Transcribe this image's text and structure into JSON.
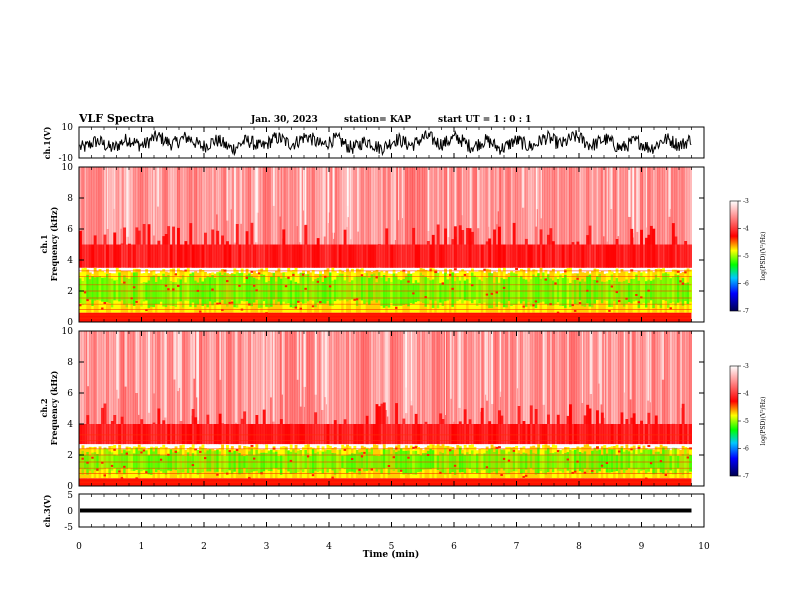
{
  "header": {
    "title": "VLF Spectra",
    "date": "Jan. 30, 2023",
    "station": "station= KAP",
    "start": "start UT =  1 : 0  : 1"
  },
  "chart_data": [
    {
      "type": "line",
      "panel": "ch1-waveform",
      "ylabel": "ch.1(V)",
      "ylim": [
        -10,
        10
      ],
      "yticks": [
        "10",
        "-10"
      ],
      "xlim": [
        0,
        10
      ],
      "data_xmax": 9.8,
      "amplitude": [
        -8,
        9
      ],
      "color": "#000000"
    },
    {
      "type": "heatmap",
      "panel": "ch1-spectrogram",
      "ylabel": "ch.1\nFrequency (kHz)",
      "ylabel_lines": [
        "ch.1",
        "Frequency (kHz)"
      ],
      "ylim": [
        0,
        10
      ],
      "yticks": [
        "0",
        "2",
        "4",
        "6",
        "8",
        "10"
      ],
      "xlim": [
        0,
        10
      ],
      "data_xmax": 9.8,
      "bands": [
        {
          "from": 0,
          "to": 0.6,
          "level": "red"
        },
        {
          "from": 0.6,
          "to": 3.5,
          "level": "yellow-green"
        },
        {
          "from": 3.5,
          "to": 5.0,
          "level": "red"
        },
        {
          "from": 5.0,
          "to": 10,
          "level": "light-red"
        }
      ],
      "colorbar": {
        "label": "log(PSD)(V²/Hz)",
        "range": [
          -7,
          -3
        ],
        "ticks": [
          "-3",
          "-4",
          "-5",
          "-6",
          "-7"
        ]
      }
    },
    {
      "type": "heatmap",
      "panel": "ch2-spectrogram",
      "ylabel": "ch.2\nFrequency (kHz)",
      "ylabel_lines": [
        "ch.2",
        "Frequency (kHz)"
      ],
      "ylim": [
        0,
        10
      ],
      "yticks": [
        "0",
        "2",
        "4",
        "6",
        "8",
        "10"
      ],
      "xlim": [
        0,
        10
      ],
      "data_xmax": 9.8,
      "bands": [
        {
          "from": 0,
          "to": 0.5,
          "level": "red"
        },
        {
          "from": 0.5,
          "to": 2.7,
          "level": "yellow-green"
        },
        {
          "from": 2.7,
          "to": 4.0,
          "level": "red"
        },
        {
          "from": 4.0,
          "to": 10,
          "level": "light-red"
        }
      ],
      "colorbar": {
        "label": "log(PSD)(V²/Hz)",
        "range": [
          -7,
          -3
        ],
        "ticks": [
          "-3",
          "-4",
          "-5",
          "-6",
          "-7"
        ]
      }
    },
    {
      "type": "line",
      "panel": "ch3-waveform",
      "ylabel": "ch.3(V)",
      "ylim": [
        -5,
        5
      ],
      "yticks": [
        "5",
        "0",
        "-5"
      ],
      "xlim": [
        0,
        10
      ],
      "data_xmax": 9.8,
      "center": 0,
      "amplitude": [
        -0.6,
        0.6
      ],
      "color": "#000000"
    }
  ],
  "xaxis": {
    "label": "Time (min)",
    "ticks": [
      "0",
      "1",
      "2",
      "3",
      "4",
      "5",
      "6",
      "7",
      "8",
      "9",
      "10"
    ]
  },
  "colors": {
    "heat_bg": "#ffffff",
    "heat_red": "#ff0000",
    "heat_yellow": "#ffff00",
    "heat_green": "#00ff00"
  }
}
